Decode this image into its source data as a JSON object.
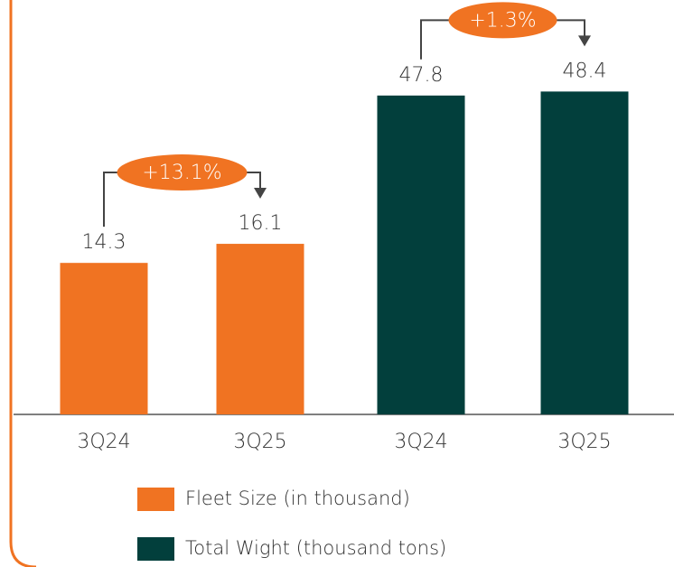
{
  "chart_data": {
    "type": "bar",
    "categories": [
      "3Q24",
      "3Q25",
      "3Q24",
      "3Q25"
    ],
    "series": [
      {
        "name": "Fleet Size (in thousand)",
        "color": "#f07322",
        "values": [
          14.3,
          16.1,
          null,
          null
        ]
      },
      {
        "name": "Total Wight (thousand tons)",
        "color": "#023f3c",
        "values": [
          null,
          null,
          47.8,
          48.4
        ],
        "axis": "y2"
      }
    ],
    "ylim": [
      0,
      34
    ],
    "y2lim": [
      0,
      54
    ],
    "annotations": [
      {
        "text": "+13.1%"
      },
      {
        "text": "+1.3%"
      }
    ],
    "annotation_color": "#f07322",
    "legend": "bottom"
  }
}
